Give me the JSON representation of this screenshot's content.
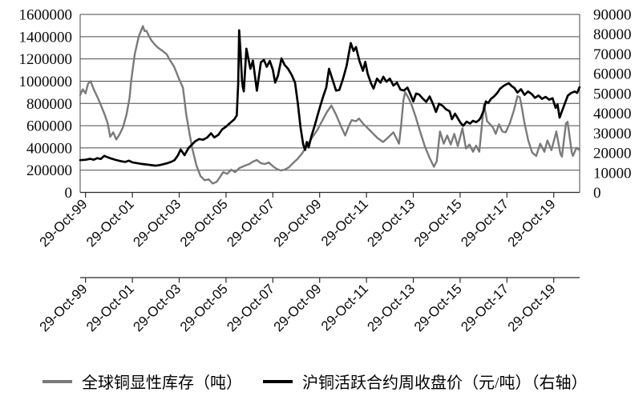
{
  "style": {
    "background": "#ffffff",
    "grid_color": "#4a4a4a",
    "axis_color": "#2b2b2b",
    "text_color": "#0a0a0a"
  },
  "chart_data": {
    "type": "line",
    "title": "",
    "grid": "horizontal",
    "legend_position": "bottom",
    "x_unit": "years since 29-Oct-1999 (weekly data)",
    "x_range": [
      -0.23,
      21.1
    ],
    "x_tick_step_years": 2,
    "x_tick_labels": [
      "29-Oct-99",
      "29-Oct-01",
      "29-Oct-03",
      "29-Oct-05",
      "29-Oct-07",
      "29-Oct-09",
      "29-Oct-11",
      "29-Oct-13",
      "29-Oct-15",
      "29-Oct-17",
      "29-Oct-19"
    ],
    "x_axis_rows": 2,
    "left_axis": {
      "min": 0,
      "max": 1600000,
      "tick_interval": 200000,
      "tick_labels": [
        "1600000",
        "1400000",
        "1200000",
        "1000000",
        "800000",
        "600000",
        "400000",
        "200000",
        "0"
      ]
    },
    "right_axis": {
      "min": 0,
      "max": 90000,
      "tick_interval": 10000,
      "tick_labels": [
        "90000",
        "80000",
        "70000",
        "60000",
        "50000",
        "40000",
        "30000",
        "20000",
        "10000",
        "0"
      ]
    },
    "series": [
      {
        "name": "全球铜显性库存（吨）",
        "axis": "left",
        "color": "#7a7a7a",
        "stroke_width": 2.4,
        "points": [
          [
            -0.23,
            876000
          ],
          [
            -0.12,
            927000
          ],
          [
            0,
            890000
          ],
          [
            0.11,
            978000
          ],
          [
            0.22,
            1000000
          ],
          [
            0.35,
            927000
          ],
          [
            0.56,
            832000
          ],
          [
            0.8,
            708000
          ],
          [
            0.95,
            620000
          ],
          [
            1.05,
            500000
          ],
          [
            1.18,
            540000
          ],
          [
            1.31,
            475000
          ],
          [
            1.45,
            520000
          ],
          [
            1.6,
            585000
          ],
          [
            1.75,
            700000
          ],
          [
            1.88,
            850000
          ],
          [
            1.95,
            1000000
          ],
          [
            2.1,
            1240000
          ],
          [
            2.27,
            1400000
          ],
          [
            2.45,
            1495000
          ],
          [
            2.52,
            1450000
          ],
          [
            2.6,
            1453000
          ],
          [
            2.7,
            1410000
          ],
          [
            2.8,
            1370000
          ],
          [
            2.96,
            1328000
          ],
          [
            3.1,
            1300000
          ],
          [
            3.3,
            1270000
          ],
          [
            3.47,
            1241000
          ],
          [
            3.6,
            1190000
          ],
          [
            3.78,
            1131000
          ],
          [
            3.99,
            1022000
          ],
          [
            4.16,
            941000
          ],
          [
            4.3,
            700000
          ],
          [
            4.45,
            520000
          ],
          [
            4.57,
            386000
          ],
          [
            4.74,
            240000
          ],
          [
            4.91,
            146000
          ],
          [
            5.09,
            109000
          ],
          [
            5.26,
            117000
          ],
          [
            5.43,
            80000
          ],
          [
            5.6,
            95000
          ],
          [
            5.72,
            131000
          ],
          [
            5.88,
            182000
          ],
          [
            6.05,
            167000
          ],
          [
            6.22,
            204000
          ],
          [
            6.39,
            182000
          ],
          [
            6.56,
            218000
          ],
          [
            6.8,
            240000
          ],
          [
            7,
            255000
          ],
          [
            7.15,
            277000
          ],
          [
            7.32,
            291000
          ],
          [
            7.49,
            262000
          ],
          [
            7.66,
            255000
          ],
          [
            7.83,
            269000
          ],
          [
            8,
            235000
          ],
          [
            8.17,
            210000
          ],
          [
            8.34,
            197000
          ],
          [
            8.51,
            205000
          ],
          [
            8.68,
            225000
          ],
          [
            8.85,
            260000
          ],
          [
            9.05,
            300000
          ],
          [
            9.25,
            350000
          ],
          [
            9.45,
            420000
          ],
          [
            9.7,
            500000
          ],
          [
            9.9,
            560000
          ],
          [
            10.1,
            640000
          ],
          [
            10.3,
            720000
          ],
          [
            10.5,
            781000
          ],
          [
            10.7,
            700000
          ],
          [
            10.9,
            600000
          ],
          [
            11.09,
            511000
          ],
          [
            11.25,
            600000
          ],
          [
            11.37,
            650000
          ],
          [
            11.55,
            640000
          ],
          [
            11.68,
            664000
          ],
          [
            11.85,
            620000
          ],
          [
            12.02,
            584000
          ],
          [
            12.23,
            540000
          ],
          [
            12.47,
            489000
          ],
          [
            12.71,
            453000
          ],
          [
            12.9,
            489000
          ],
          [
            13.15,
            540000
          ],
          [
            13.39,
            438000
          ],
          [
            13.48,
            600000
          ],
          [
            13.58,
            830000
          ],
          [
            13.65,
            900000
          ],
          [
            13.78,
            855000
          ],
          [
            13.92,
            790000
          ],
          [
            14.1,
            680000
          ],
          [
            14.3,
            540000
          ],
          [
            14.5,
            410000
          ],
          [
            14.7,
            310000
          ],
          [
            14.88,
            230000
          ],
          [
            15,
            280000
          ],
          [
            15.14,
            548000
          ],
          [
            15.3,
            438000
          ],
          [
            15.45,
            511000
          ],
          [
            15.6,
            431000
          ],
          [
            15.75,
            526000
          ],
          [
            15.9,
            416000
          ],
          [
            16.1,
            577000
          ],
          [
            16.25,
            394000
          ],
          [
            16.4,
            431000
          ],
          [
            16.55,
            365000
          ],
          [
            16.68,
            420000
          ],
          [
            16.82,
            365000
          ],
          [
            17.02,
            795000
          ],
          [
            17.15,
            640000
          ],
          [
            17.28,
            613000
          ],
          [
            17.4,
            584000
          ],
          [
            17.52,
            526000
          ],
          [
            17.66,
            613000
          ],
          [
            17.8,
            548000
          ],
          [
            17.95,
            540000
          ],
          [
            18.12,
            620000
          ],
          [
            18.3,
            740000
          ],
          [
            18.45,
            865000
          ],
          [
            18.55,
            855000
          ],
          [
            18.64,
            759000
          ],
          [
            18.74,
            635000
          ],
          [
            18.91,
            467000
          ],
          [
            19.08,
            358000
          ],
          [
            19.25,
            328000
          ],
          [
            19.42,
            438000
          ],
          [
            19.6,
            365000
          ],
          [
            19.73,
            467000
          ],
          [
            19.9,
            380000
          ],
          [
            20.05,
            500000
          ],
          [
            20.11,
            548000
          ],
          [
            20.28,
            350000
          ],
          [
            20.35,
            321000
          ],
          [
            20.52,
            620000
          ],
          [
            20.59,
            635000
          ],
          [
            20.77,
            358000
          ],
          [
            20.82,
            328000
          ],
          [
            20.97,
            401000
          ],
          [
            21.1,
            380000
          ]
        ]
      },
      {
        "name": "沪铜活跃合约周收盘价（元/吨）（右轴）",
        "axis": "right",
        "color": "#000000",
        "stroke_width": 2.7,
        "points": [
          [
            -0.23,
            16300
          ],
          [
            0,
            16500
          ],
          [
            0.2,
            17000
          ],
          [
            0.35,
            16500
          ],
          [
            0.5,
            17300
          ],
          [
            0.65,
            16900
          ],
          [
            0.8,
            18500
          ],
          [
            0.95,
            17700
          ],
          [
            1.1,
            17100
          ],
          [
            1.3,
            16400
          ],
          [
            1.5,
            15800
          ],
          [
            1.7,
            15400
          ],
          [
            1.85,
            16000
          ],
          [
            2,
            15200
          ],
          [
            2.2,
            14800
          ],
          [
            2.4,
            14400
          ],
          [
            2.6,
            14100
          ],
          [
            2.8,
            13800
          ],
          [
            3,
            13500
          ],
          [
            3.15,
            13800
          ],
          [
            3.3,
            14200
          ],
          [
            3.5,
            14800
          ],
          [
            3.65,
            15400
          ],
          [
            3.8,
            16300
          ],
          [
            3.95,
            18800
          ],
          [
            4.06,
            21700
          ],
          [
            4.23,
            18800
          ],
          [
            4.4,
            22500
          ],
          [
            4.68,
            25800
          ],
          [
            4.85,
            27000
          ],
          [
            5.02,
            26600
          ],
          [
            5.2,
            27800
          ],
          [
            5.36,
            29900
          ],
          [
            5.5,
            27800
          ],
          [
            5.67,
            29100
          ],
          [
            5.84,
            31900
          ],
          [
            6,
            33200
          ],
          [
            6.18,
            35200
          ],
          [
            6.35,
            36900
          ],
          [
            6.46,
            38900
          ],
          [
            6.52,
            55000
          ],
          [
            6.56,
            82000
          ],
          [
            6.62,
            71000
          ],
          [
            6.68,
            57000
          ],
          [
            6.72,
            53200
          ],
          [
            6.76,
            51100
          ],
          [
            6.87,
            72700
          ],
          [
            6.95,
            68000
          ],
          [
            7.04,
            62500
          ],
          [
            7.15,
            66600
          ],
          [
            7.32,
            51400
          ],
          [
            7.49,
            65800
          ],
          [
            7.62,
            67000
          ],
          [
            7.74,
            63500
          ],
          [
            7.87,
            66500
          ],
          [
            8,
            62000
          ],
          [
            8.1,
            55500
          ],
          [
            8.22,
            59000
          ],
          [
            8.37,
            67800
          ],
          [
            8.5,
            64500
          ],
          [
            8.65,
            62500
          ],
          [
            8.8,
            59500
          ],
          [
            8.95,
            55500
          ],
          [
            9.07,
            45000
          ],
          [
            9.18,
            33000
          ],
          [
            9.3,
            24000
          ],
          [
            9.38,
            21500
          ],
          [
            9.45,
            25500
          ],
          [
            9.53,
            22800
          ],
          [
            9.65,
            28500
          ],
          [
            9.78,
            33500
          ],
          [
            9.9,
            38500
          ],
          [
            10.02,
            43500
          ],
          [
            10.15,
            48500
          ],
          [
            10.28,
            53000
          ],
          [
            10.4,
            62500
          ],
          [
            10.55,
            57000
          ],
          [
            10.7,
            51500
          ],
          [
            10.84,
            51800
          ],
          [
            11,
            57500
          ],
          [
            11.15,
            64000
          ],
          [
            11.33,
            75500
          ],
          [
            11.45,
            71500
          ],
          [
            11.55,
            73500
          ],
          [
            11.7,
            66500
          ],
          [
            11.85,
            61500
          ],
          [
            11.95,
            66000
          ],
          [
            12.05,
            60000
          ],
          [
            12.2,
            55000
          ],
          [
            12.3,
            52500
          ],
          [
            12.45,
            57500
          ],
          [
            12.6,
            55500
          ],
          [
            12.72,
            58500
          ],
          [
            12.85,
            56000
          ],
          [
            13,
            57500
          ],
          [
            13.15,
            54000
          ],
          [
            13.3,
            55500
          ],
          [
            13.45,
            52000
          ],
          [
            13.6,
            51500
          ],
          [
            13.75,
            53000
          ],
          [
            13.88,
            49500
          ],
          [
            14,
            46000
          ],
          [
            14.12,
            50000
          ],
          [
            14.25,
            49500
          ],
          [
            14.4,
            47500
          ],
          [
            14.55,
            45800
          ],
          [
            14.7,
            48500
          ],
          [
            14.85,
            44500
          ],
          [
            14.97,
            40700
          ],
          [
            15.1,
            44800
          ],
          [
            15.25,
            43800
          ],
          [
            15.4,
            42000
          ],
          [
            15.55,
            41000
          ],
          [
            15.65,
            37000
          ],
          [
            15.78,
            39800
          ],
          [
            15.9,
            37500
          ],
          [
            16,
            35500
          ],
          [
            16.13,
            33700
          ],
          [
            16.28,
            35800
          ],
          [
            16.42,
            34800
          ],
          [
            16.55,
            36200
          ],
          [
            16.68,
            35500
          ],
          [
            16.8,
            36500
          ],
          [
            16.88,
            37800
          ],
          [
            17,
            41200
          ],
          [
            17.1,
            46000
          ],
          [
            17.2,
            45200
          ],
          [
            17.32,
            47300
          ],
          [
            17.45,
            48500
          ],
          [
            17.6,
            50500
          ],
          [
            17.7,
            52300
          ],
          [
            17.85,
            53800
          ],
          [
            17.95,
            54500
          ],
          [
            18.08,
            55200
          ],
          [
            18.2,
            53800
          ],
          [
            18.32,
            52800
          ],
          [
            18.45,
            50500
          ],
          [
            18.6,
            52200
          ],
          [
            18.75,
            49300
          ],
          [
            18.9,
            51000
          ],
          [
            19.05,
            49800
          ],
          [
            19.2,
            47800
          ],
          [
            19.35,
            49000
          ],
          [
            19.5,
            47300
          ],
          [
            19.65,
            48300
          ],
          [
            19.8,
            46900
          ],
          [
            19.95,
            47600
          ],
          [
            20.08,
            42700
          ],
          [
            20.16,
            44500
          ],
          [
            20.25,
            37800
          ],
          [
            20.35,
            41000
          ],
          [
            20.5,
            45800
          ],
          [
            20.6,
            48900
          ],
          [
            20.75,
            50300
          ],
          [
            20.9,
            51000
          ],
          [
            21,
            50300
          ],
          [
            21.1,
            53200
          ]
        ]
      }
    ]
  },
  "legend": {
    "items": [
      {
        "label": "全球铜显性库存（吨）",
        "color": "#7a7a7a"
      },
      {
        "label": "沪铜活跃合约周收盘价（元/吨）（右轴）",
        "color": "#000000"
      }
    ]
  }
}
